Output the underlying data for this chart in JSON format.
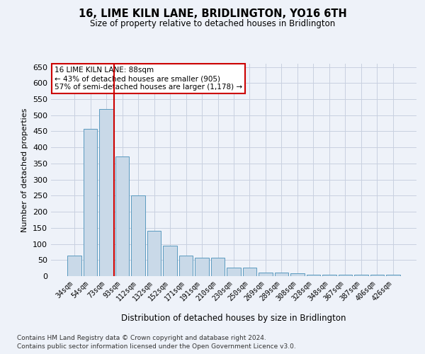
{
  "title": "16, LIME KILN LANE, BRIDLINGTON, YO16 6TH",
  "subtitle": "Size of property relative to detached houses in Bridlington",
  "xlabel": "Distribution of detached houses by size in Bridlington",
  "ylabel": "Number of detached properties",
  "categories": [
    "34sqm",
    "54sqm",
    "73sqm",
    "93sqm",
    "112sqm",
    "132sqm",
    "152sqm",
    "171sqm",
    "191sqm",
    "210sqm",
    "230sqm",
    "250sqm",
    "269sqm",
    "289sqm",
    "308sqm",
    "328sqm",
    "348sqm",
    "367sqm",
    "387sqm",
    "406sqm",
    "426sqm"
  ],
  "values": [
    63,
    458,
    520,
    372,
    250,
    140,
    95,
    63,
    58,
    57,
    27,
    27,
    12,
    12,
    8,
    5,
    5,
    5,
    5,
    5,
    5
  ],
  "bar_color": "#c9d9e8",
  "bar_edge_color": "#5a9abf",
  "grid_color": "#c8d0e0",
  "background_color": "#eef2f9",
  "vline_x_index": 2.5,
  "vline_color": "#cc0000",
  "annotation_line1": "16 LIME KILN LANE: 88sqm",
  "annotation_line2": "← 43% of detached houses are smaller (905)",
  "annotation_line3": "57% of semi-detached houses are larger (1,178) →",
  "annotation_box_color": "#ffffff",
  "annotation_box_edge": "#cc0000",
  "footnote1": "Contains HM Land Registry data © Crown copyright and database right 2024.",
  "footnote2": "Contains public sector information licensed under the Open Government Licence v3.0.",
  "ylim": [
    0,
    660
  ],
  "yticks": [
    0,
    50,
    100,
    150,
    200,
    250,
    300,
    350,
    400,
    450,
    500,
    550,
    600,
    650
  ]
}
